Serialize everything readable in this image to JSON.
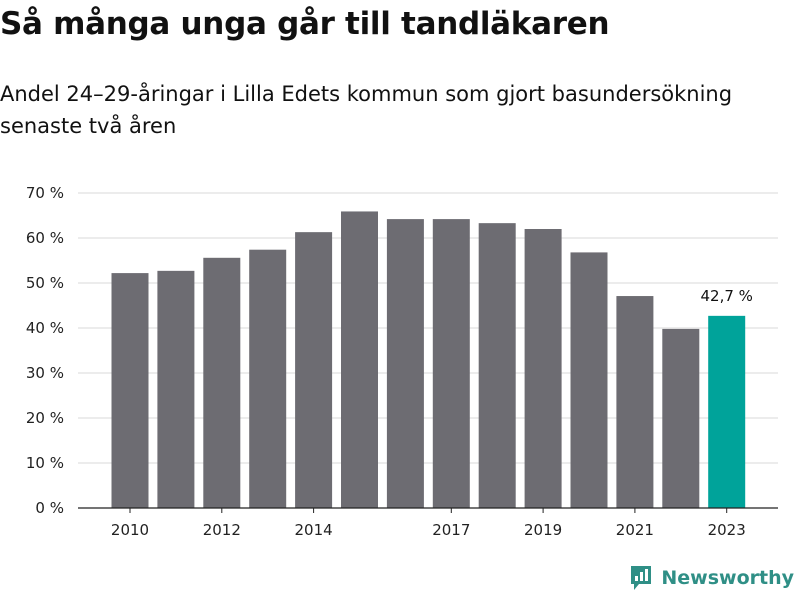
{
  "header": {
    "title": "Så många unga går till tandläkaren",
    "subtitle": "Andel 24–29-åringar i Lilla Edets kommun som gjort basundersökning senaste två åren"
  },
  "brand": {
    "name": "Newsworthy",
    "color": "#2f8f86"
  },
  "colors": {
    "bar": "#6d6c72",
    "highlight": "#00a39a",
    "grid": "#d9d9d9",
    "axis": "#222222"
  },
  "chart_data": {
    "type": "bar",
    "categories": [
      "2010",
      "2011",
      "2012",
      "2013",
      "2014",
      "2015",
      "2016",
      "2017",
      "2018",
      "2019",
      "2020",
      "2021",
      "2022",
      "2023"
    ],
    "values": [
      52.2,
      52.7,
      55.6,
      57.4,
      61.3,
      65.9,
      64.2,
      64.2,
      63.3,
      62.0,
      56.8,
      47.1,
      39.8,
      42.7
    ],
    "x_tick_labels": [
      "2010",
      "2012",
      "2014",
      "2017",
      "2019",
      "2021",
      "2023"
    ],
    "y_ticks": [
      0,
      10,
      20,
      30,
      40,
      50,
      60,
      70
    ],
    "y_tick_labels": [
      "0 %",
      "10 %",
      "20 %",
      "30 %",
      "40 %",
      "50 %",
      "60 %",
      "70 %"
    ],
    "ylim": [
      0,
      70
    ],
    "highlight_category": "2023",
    "data_labels": [
      {
        "category": "2023",
        "text": "42,7 %"
      }
    ],
    "grid": true,
    "xlabel": "",
    "ylabel": ""
  }
}
